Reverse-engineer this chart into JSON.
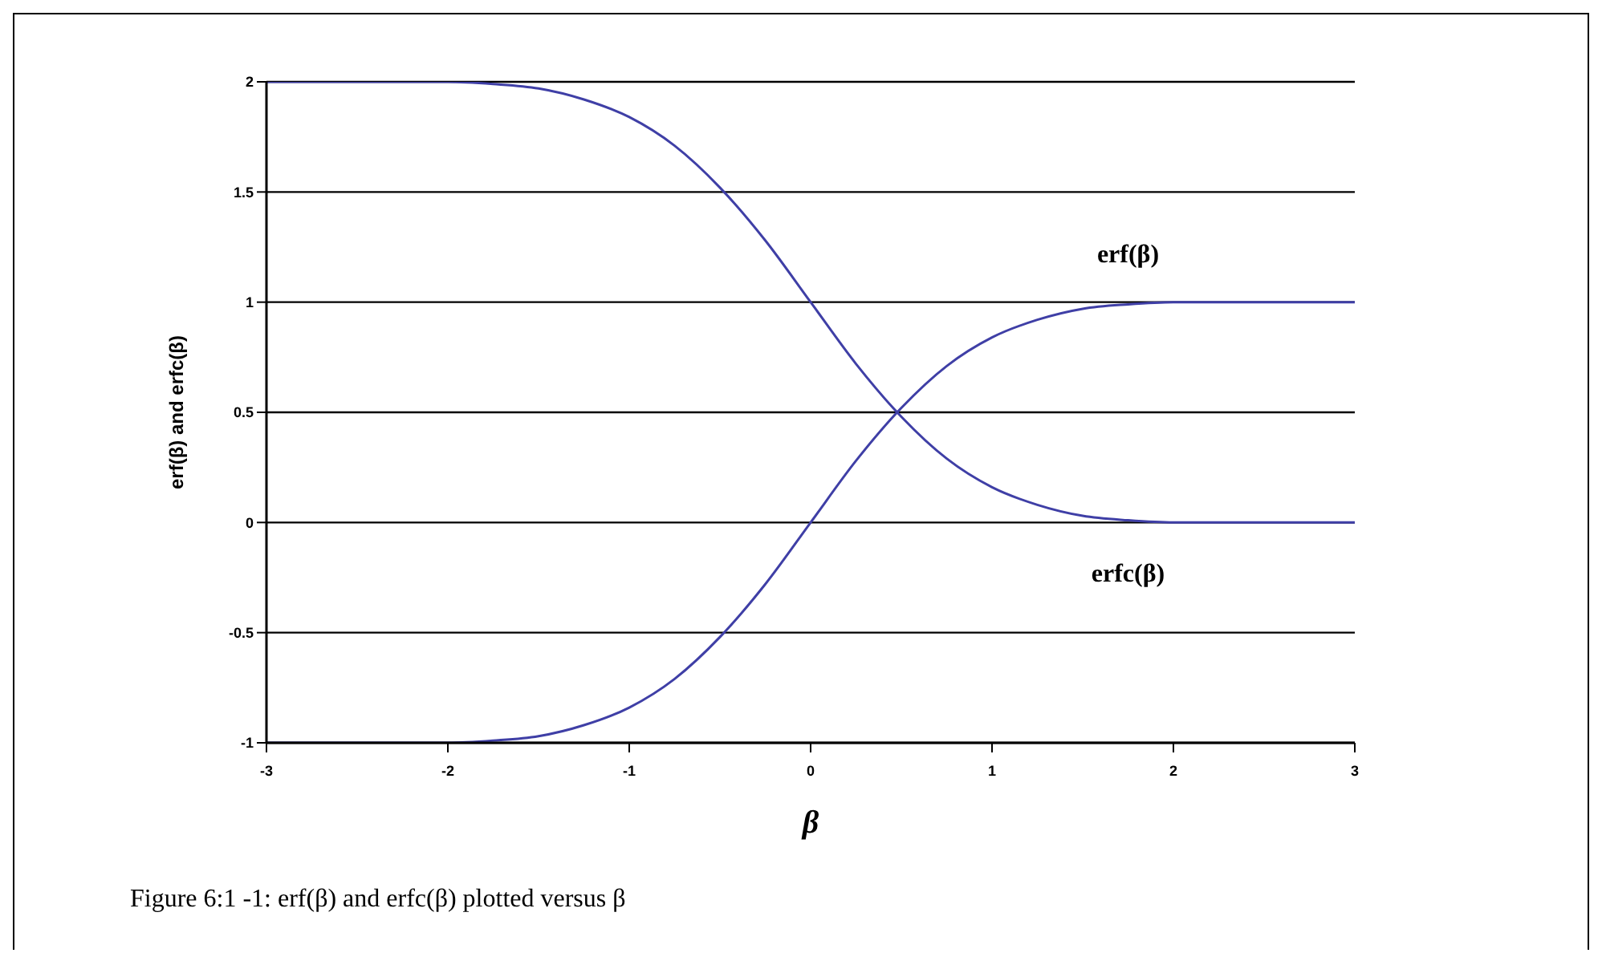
{
  "chart_data": {
    "type": "line",
    "xlabel": "β",
    "ylabel": "erf(β) and erfc(β)",
    "x": [
      -3,
      -2.5,
      -2,
      -1.75,
      -1.5,
      -1.25,
      -1,
      -0.75,
      -0.5,
      -0.25,
      0,
      0.25,
      0.5,
      0.75,
      1,
      1.25,
      1.5,
      1.75,
      2,
      2.5,
      3
    ],
    "series": [
      {
        "name": "erf(β)",
        "color": "#3f3fa6",
        "values": [
          -1,
          -1,
          -1,
          -0.99,
          -0.97,
          -0.92,
          -0.84,
          -0.71,
          -0.52,
          -0.28,
          0,
          0.28,
          0.52,
          0.71,
          0.84,
          0.92,
          0.97,
          0.99,
          1,
          1,
          1
        ]
      },
      {
        "name": "erfc(β)",
        "color": "#3f3fa6",
        "values": [
          2,
          2,
          2,
          1.99,
          1.97,
          1.92,
          1.84,
          1.71,
          1.52,
          1.28,
          1,
          0.72,
          0.48,
          0.29,
          0.16,
          0.08,
          0.03,
          0.01,
          0,
          0,
          0
        ]
      }
    ],
    "xlim": [
      -3,
      3
    ],
    "xticks": [
      -3,
      -2,
      -1,
      0,
      1,
      2,
      3
    ],
    "ylim": [
      -1,
      2
    ],
    "yticks": [
      -1,
      -0.5,
      0,
      0.5,
      1,
      1.5,
      2
    ],
    "grid": "y",
    "legend": false,
    "marker": "none",
    "line_style": "solid",
    "annotations": [
      "Figure 6:1 -1: erf(β) and erfc(β) plotted versus β"
    ]
  }
}
